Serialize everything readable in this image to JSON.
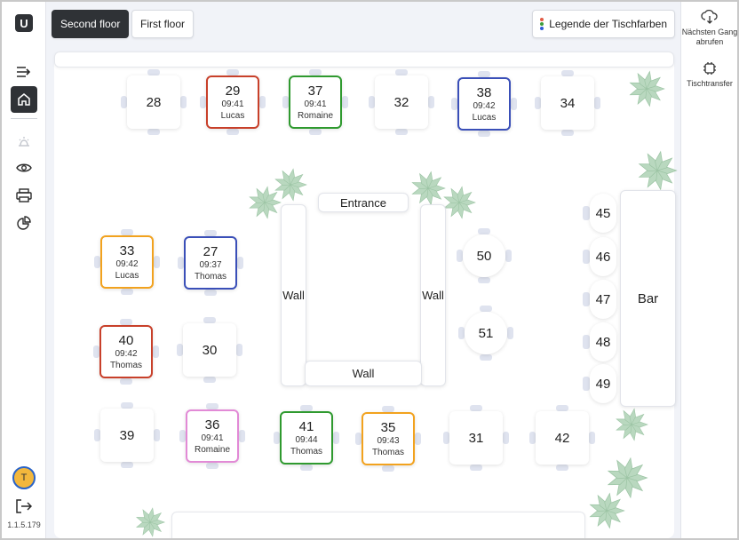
{
  "sidebar": {
    "logo": "U",
    "items": [
      {
        "name": "collapse-menu-icon",
        "glyph": "⇥"
      },
      {
        "name": "home-icon",
        "glyph": "⌂"
      },
      {
        "name": "bell-icon",
        "glyph": "♪"
      },
      {
        "name": "eye-icon",
        "glyph": "◉"
      },
      {
        "name": "printer-icon",
        "glyph": "⎙"
      },
      {
        "name": "pie-chart-icon",
        "glyph": "◔"
      }
    ],
    "avatar_initial": "T",
    "logout_icon": "logout-icon",
    "version": "1.1.5.179"
  },
  "topbar": {
    "floors": [
      "Second floor",
      "First floor"
    ],
    "active_floor": "Second floor",
    "legend_label": "Legende der Tischfarben",
    "legend_colors": [
      "#e25b45",
      "#3c9c3c",
      "#2f5bd8"
    ]
  },
  "rightbar": {
    "next_course_label": "Nächsten Gang abrufen",
    "transfer_label": "Tischtransfer"
  },
  "colors": {
    "red": "#c8402a",
    "green": "#2f9a2f",
    "blue": "#3a4fb8",
    "orange": "#f2a21e",
    "pink": "#e28ad6"
  },
  "walls": {
    "entrance": "Entrance",
    "wall_left": "Wall",
    "wall_right": "Wall",
    "wall_bottom": "Wall",
    "bar": "Bar"
  },
  "tables": [
    {
      "num": "28",
      "time": "",
      "name": "",
      "color": ""
    },
    {
      "num": "29",
      "time": "09:41",
      "name": "Lucas",
      "color": "red"
    },
    {
      "num": "37",
      "time": "09:41",
      "name": "Romaine",
      "color": "green"
    },
    {
      "num": "32",
      "time": "",
      "name": "",
      "color": ""
    },
    {
      "num": "38",
      "time": "09:42",
      "name": "Lucas",
      "color": "blue"
    },
    {
      "num": "34",
      "time": "",
      "name": "",
      "color": ""
    },
    {
      "num": "33",
      "time": "09:42",
      "name": "Lucas",
      "color": "orange"
    },
    {
      "num": "27",
      "time": "09:37",
      "name": "Thomas",
      "color": "blue"
    },
    {
      "num": "40",
      "time": "09:42",
      "name": "Thomas",
      "color": "red"
    },
    {
      "num": "30",
      "time": "",
      "name": "",
      "color": ""
    },
    {
      "num": "39",
      "time": "",
      "name": "",
      "color": ""
    },
    {
      "num": "36",
      "time": "09:41",
      "name": "Romaine",
      "color": "pink"
    },
    {
      "num": "41",
      "time": "09:44",
      "name": "Thomas",
      "color": "green"
    },
    {
      "num": "35",
      "time": "09:43",
      "name": "Thomas",
      "color": "orange"
    },
    {
      "num": "31",
      "time": "",
      "name": "",
      "color": ""
    },
    {
      "num": "42",
      "time": "",
      "name": "",
      "color": ""
    },
    {
      "num": "50",
      "time": "",
      "name": "",
      "color": ""
    },
    {
      "num": "51",
      "time": "",
      "name": "",
      "color": ""
    },
    {
      "num": "45",
      "time": "",
      "name": "",
      "color": ""
    },
    {
      "num": "46",
      "time": "",
      "name": "",
      "color": ""
    },
    {
      "num": "47",
      "time": "",
      "name": "",
      "color": ""
    },
    {
      "num": "48",
      "time": "",
      "name": "",
      "color": ""
    },
    {
      "num": "49",
      "time": "",
      "name": "",
      "color": ""
    }
  ]
}
